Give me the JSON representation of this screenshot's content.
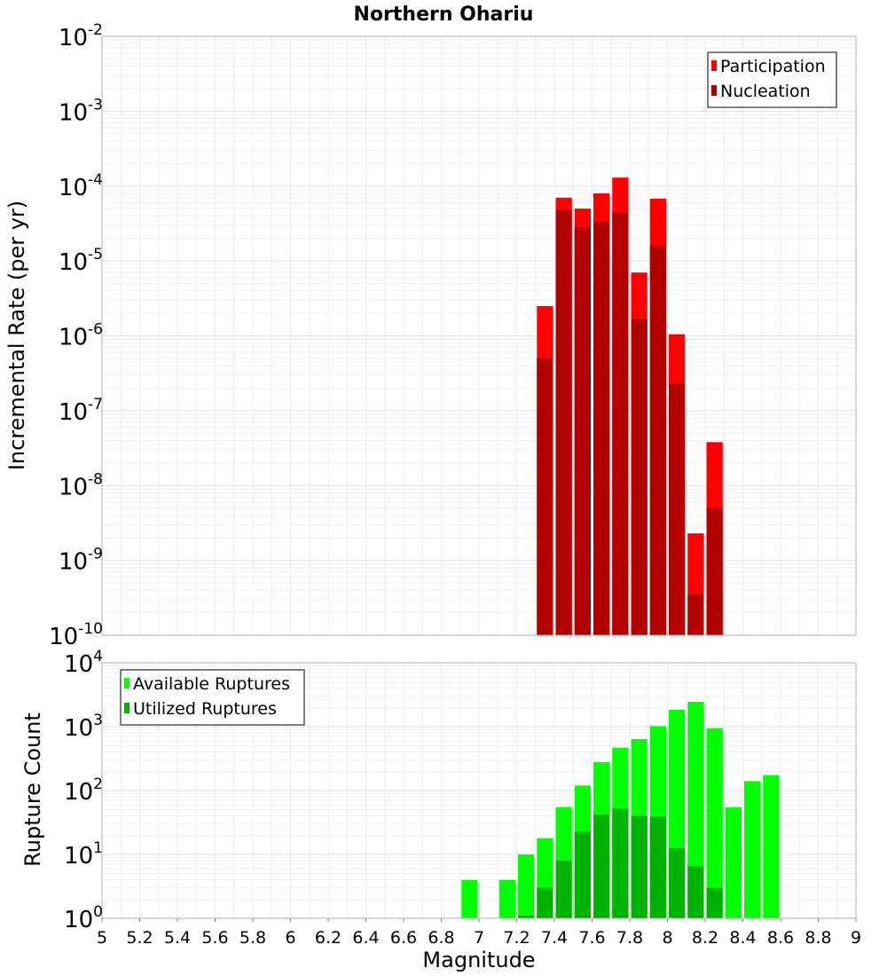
{
  "chart_data": [
    {
      "type": "bar",
      "title": "Northern Ohariu",
      "xlabel": "",
      "ylabel": "Incremental Rate (per yr)",
      "xlim": [
        5,
        9
      ],
      "ylim": [
        1e-10,
        0.01
      ],
      "yscale": "log",
      "grid": true,
      "legend_position": "top-right",
      "bin_width": 0.1,
      "x": [
        7.35,
        7.45,
        7.55,
        7.65,
        7.75,
        7.85,
        7.95,
        8.05,
        8.15,
        8.25
      ],
      "series": [
        {
          "name": "Participation",
          "color": "#ff0000",
          "values": [
            2.5e-06,
            7e-05,
            5e-05,
            8e-05,
            0.00013,
            7e-06,
            6.8e-05,
            1.05e-06,
            2.3e-09,
            3.8e-08
          ]
        },
        {
          "name": "Nucleation",
          "color": "#b20000",
          "values": [
            5e-07,
            4.8e-05,
            2.8e-05,
            3.3e-05,
            4.5e-05,
            1.7e-06,
            1.6e-05,
            2.3e-07,
            3.5e-10,
            5e-09
          ]
        }
      ],
      "y_ticks": [
        {
          "base": "10",
          "exp": "-2"
        },
        {
          "base": "10",
          "exp": "-3"
        },
        {
          "base": "10",
          "exp": "-4"
        },
        {
          "base": "10",
          "exp": "-5"
        },
        {
          "base": "10",
          "exp": "-6"
        },
        {
          "base": "10",
          "exp": "-7"
        },
        {
          "base": "10",
          "exp": "-8"
        },
        {
          "base": "10",
          "exp": "-9"
        },
        {
          "base": "10",
          "exp": "-10"
        }
      ]
    },
    {
      "type": "bar",
      "title": "",
      "xlabel": "Magnitude",
      "ylabel": "Rupture Count",
      "xlim": [
        5,
        9
      ],
      "ylim": [
        1,
        10000
      ],
      "yscale": "log",
      "grid": true,
      "legend_position": "top-left",
      "bin_width": 0.1,
      "x": [
        6.95,
        7.15,
        7.25,
        7.35,
        7.45,
        7.55,
        7.65,
        7.75,
        7.85,
        7.95,
        8.05,
        8.15,
        8.25,
        8.35,
        8.45,
        8.55
      ],
      "series": [
        {
          "name": "Available Ruptures",
          "color": "#00ff00",
          "values": [
            4,
            4,
            10,
            18,
            55,
            120,
            280,
            470,
            640,
            1020,
            1850,
            2450,
            950,
            55,
            140,
            175
          ]
        },
        {
          "name": "Utilized Ruptures",
          "color": "#00b200",
          "values": [
            0,
            0,
            1.1,
            3,
            8,
            23,
            42,
            52,
            40,
            39,
            12.5,
            6.5,
            3,
            0,
            0,
            0
          ]
        }
      ],
      "x_ticks": [
        "5",
        "5.2",
        "5.4",
        "5.6",
        "5.8",
        "6",
        "6.2",
        "6.4",
        "6.6",
        "6.8",
        "7",
        "7.2",
        "7.4",
        "7.6",
        "7.8",
        "8",
        "8.2",
        "8.4",
        "8.6",
        "8.8",
        "9"
      ],
      "y_ticks": [
        {
          "base": "10",
          "exp": "4"
        },
        {
          "base": "10",
          "exp": "3"
        },
        {
          "base": "10",
          "exp": "2"
        },
        {
          "base": "10",
          "exp": "1"
        },
        {
          "base": "10",
          "exp": "0"
        }
      ]
    }
  ]
}
